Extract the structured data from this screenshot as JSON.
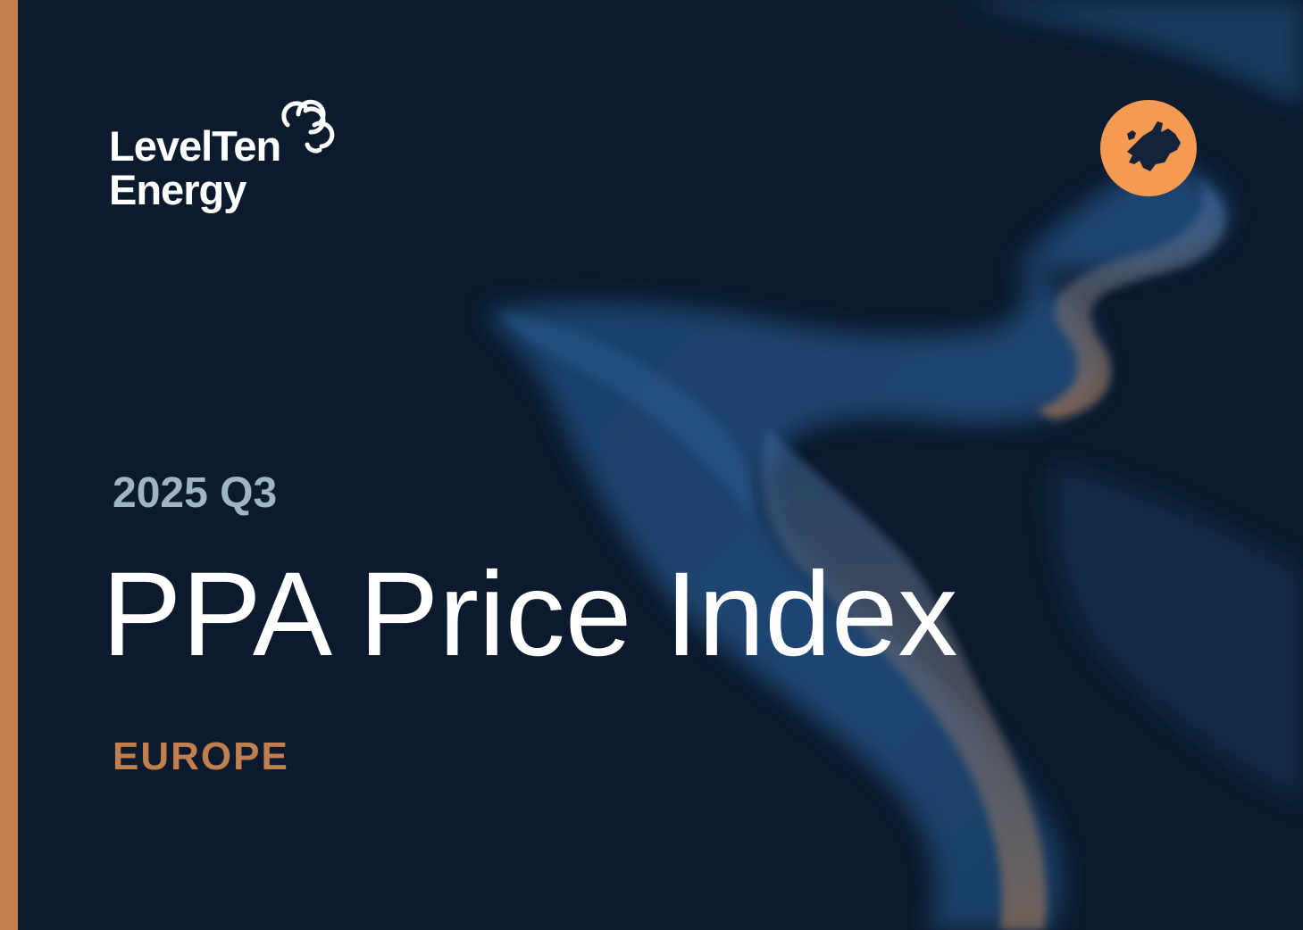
{
  "logo": {
    "line1": "LevelTen",
    "line2": "Energy"
  },
  "period": "2025 Q3",
  "title": "PPA Price Index",
  "region": "EUROPE"
}
